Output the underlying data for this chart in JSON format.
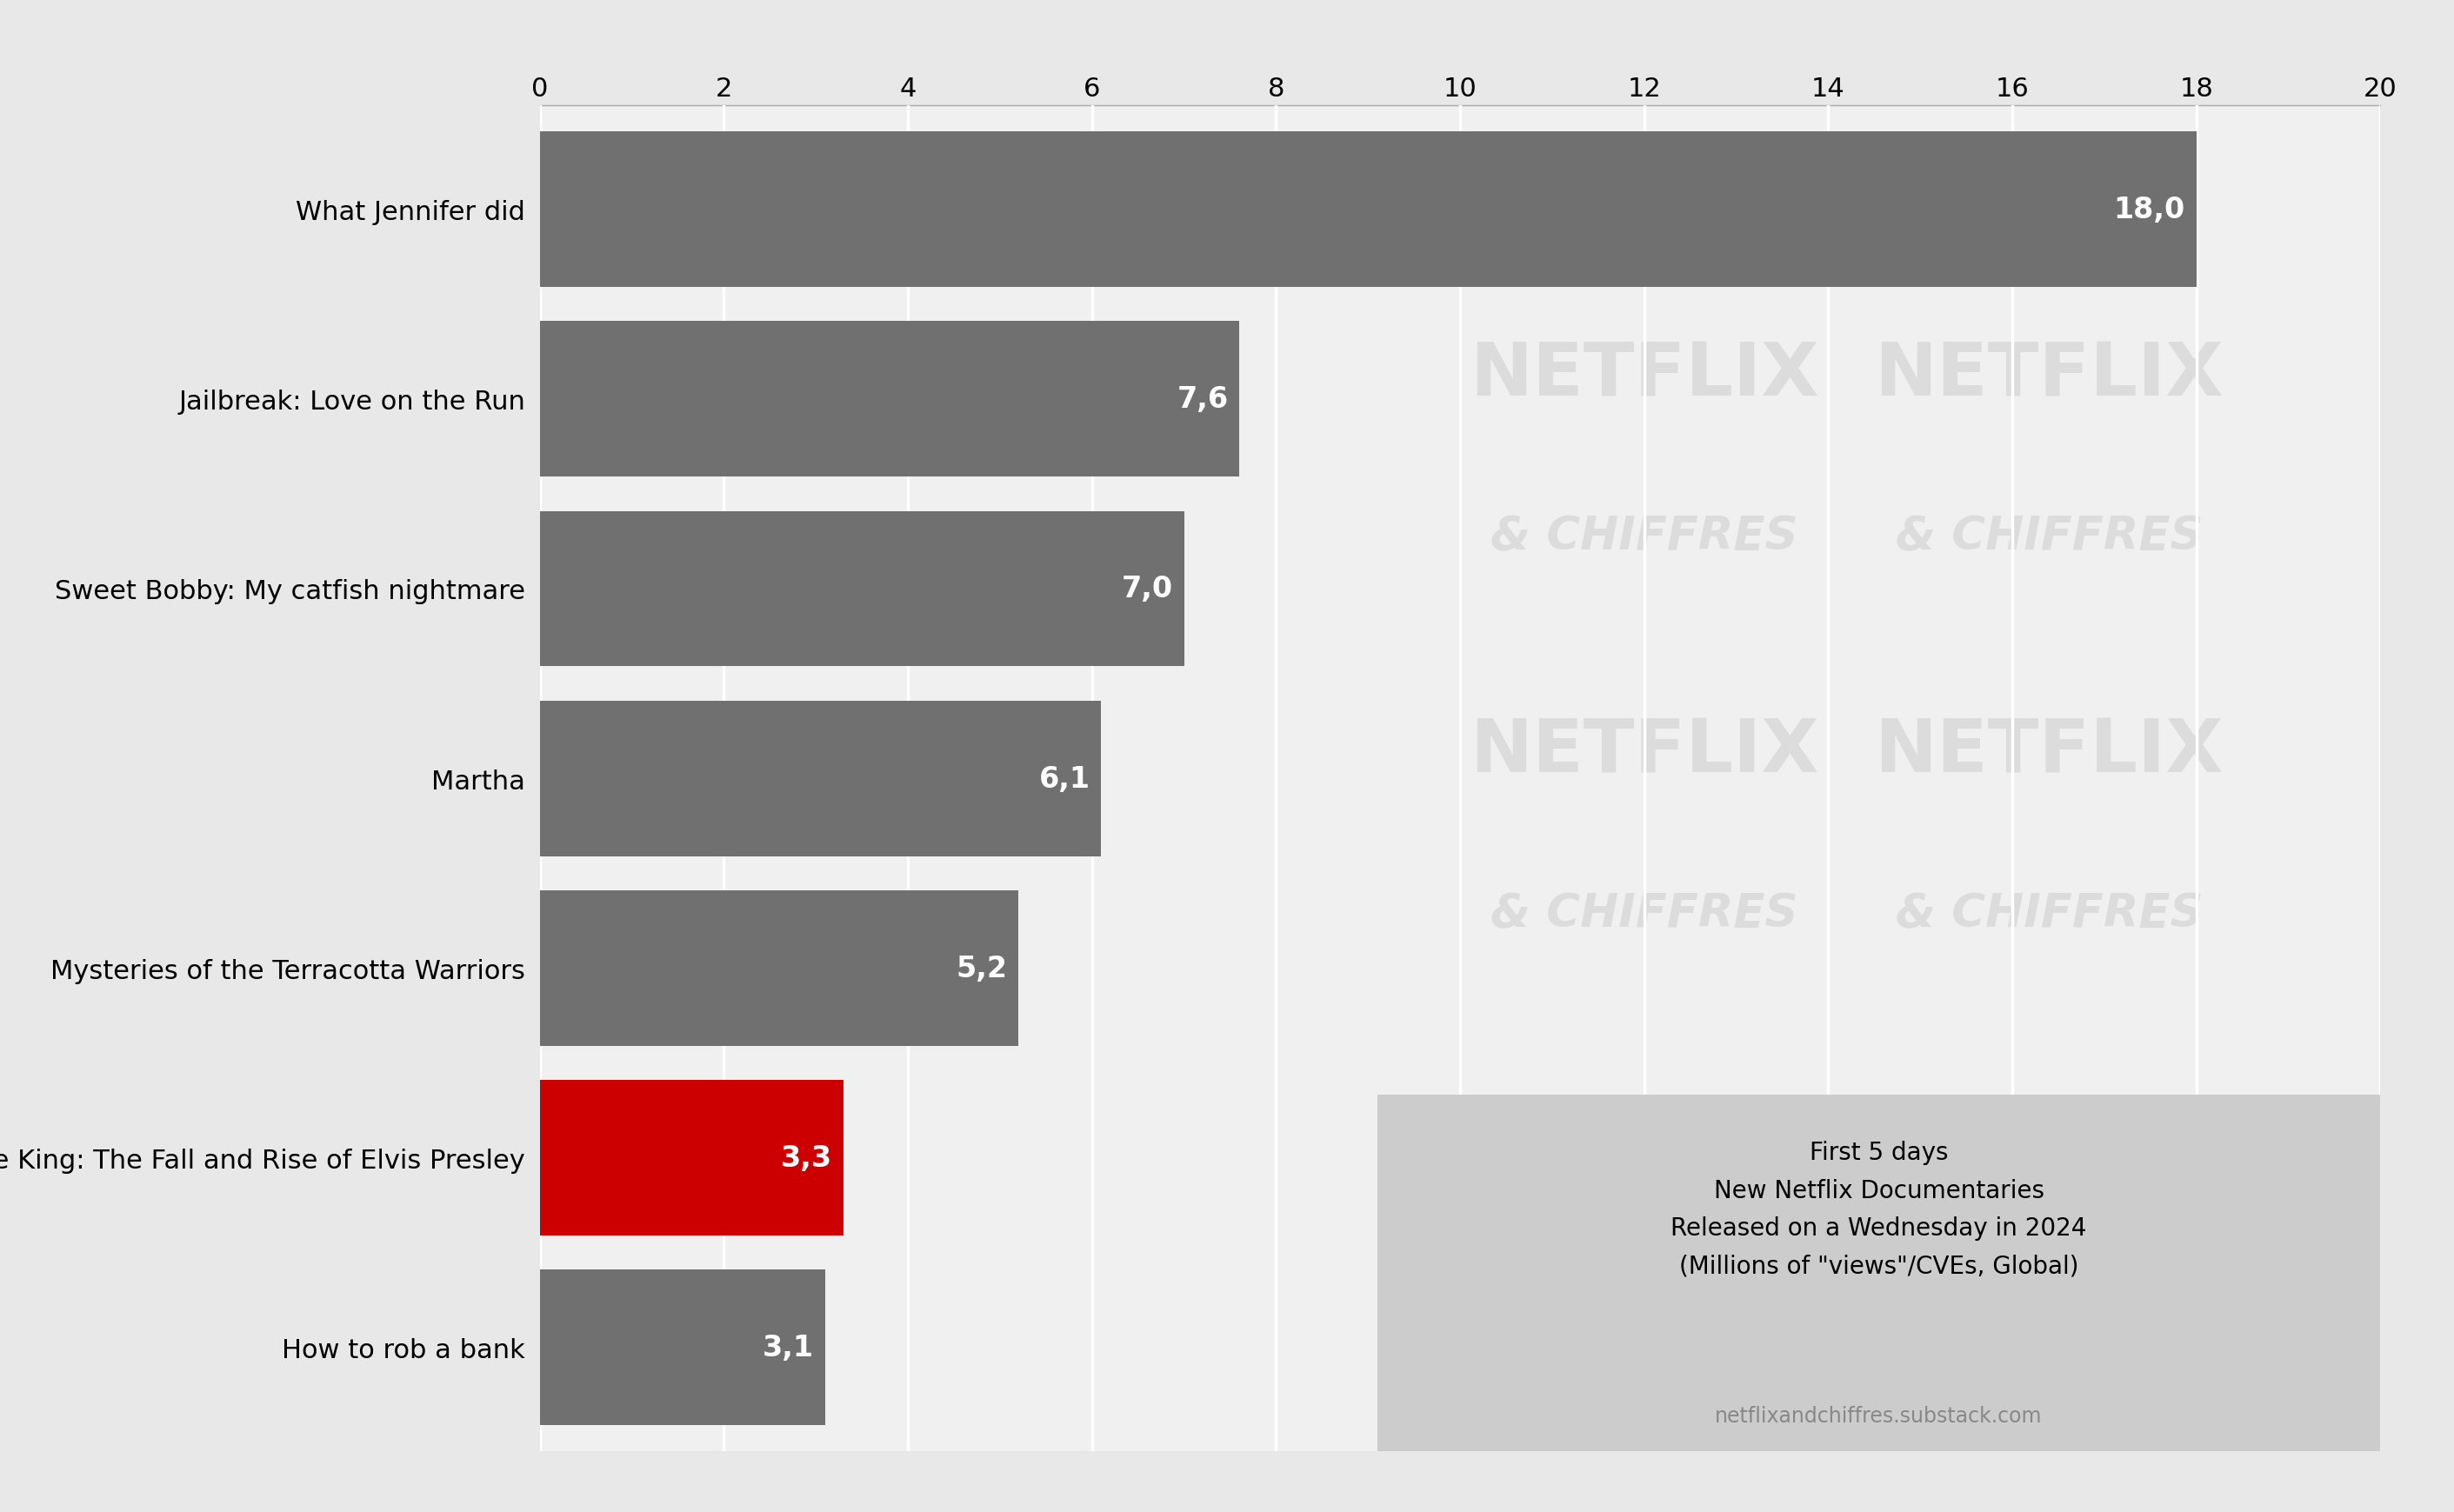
{
  "categories": [
    "What Jennifer did",
    "Jailbreak: Love on the Run",
    "Sweet Bobby: My catfish nightmare",
    "Martha",
    "Mysteries of the Terracotta Warriors",
    "Return of the King: The Fall and Rise of Elvis Presley",
    "How to rob a bank"
  ],
  "values": [
    18.0,
    7.6,
    7.0,
    6.1,
    5.2,
    3.3,
    3.1
  ],
  "value_labels": [
    "18,0",
    "7,6",
    "7,0",
    "6,1",
    "5,2",
    "3,3",
    "3,1"
  ],
  "bar_colors": [
    "#707070",
    "#707070",
    "#707070",
    "#707070",
    "#707070",
    "#cc0000",
    "#707070"
  ],
  "background_color": "#e8e8e8",
  "plot_bg_color": "#f0f0f0",
  "xlim": [
    0,
    20
  ],
  "xticks": [
    0,
    2,
    4,
    6,
    8,
    10,
    12,
    14,
    16,
    18,
    20
  ],
  "annotation_lines": [
    "First 5 days",
    "New Netflix Documentaries",
    "Released on a Wednesday in 2024",
    "(Millions of \"views\"/CVEs, Global)"
  ],
  "annotation_source": "netflixandchiffres.substack.com",
  "annotation_box_color": "#cccccc",
  "netflix_text": "NETFLIX",
  "netflix_subtext": "& CHIFFRES",
  "watermark_color": "#dcdcdc"
}
